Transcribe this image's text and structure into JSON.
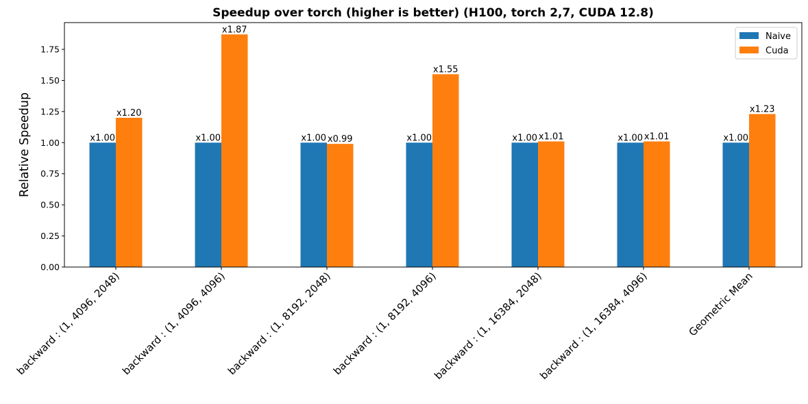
{
  "chart_data": {
    "type": "bar",
    "title": "Speedup over torch (higher is better) (H100, torch 2,7, CUDA 12.8)",
    "xlabel": "",
    "ylabel": "Relative Speedup",
    "ylim": [
      0,
      1.965
    ],
    "yticks": [
      0.0,
      0.25,
      0.5,
      0.75,
      1.0,
      1.25,
      1.5,
      1.75
    ],
    "ytick_labels": [
      "0.00",
      "0.25",
      "0.50",
      "0.75",
      "1.00",
      "1.25",
      "1.50",
      "1.75"
    ],
    "grid": false,
    "legend_position": "top-right",
    "categories": [
      "backward : (1, 4096, 2048)",
      "backward : (1, 4096, 4096)",
      "backward : (1, 8192, 2048)",
      "backward : (1, 8192, 4096)",
      "backward : (1, 16384, 2048)",
      "backward : (1, 16384, 4096)",
      "Geometric Mean"
    ],
    "series": [
      {
        "name": "Naive",
        "color": "#1f77b4",
        "values": [
          1.0,
          1.0,
          1.0,
          1.0,
          1.0,
          1.0,
          1.0
        ],
        "labels": [
          "x1.00",
          "x1.00",
          "x1.00",
          "x1.00",
          "x1.00",
          "x1.00",
          "x1.00"
        ]
      },
      {
        "name": "Cuda",
        "color": "#ff7f0e",
        "values": [
          1.2,
          1.87,
          0.99,
          1.55,
          1.01,
          1.01,
          1.23
        ],
        "labels": [
          "x1.20",
          "x1.87",
          "x0.99",
          "x1.55",
          "x1.01",
          "x1.01",
          "x1.23"
        ]
      }
    ]
  }
}
